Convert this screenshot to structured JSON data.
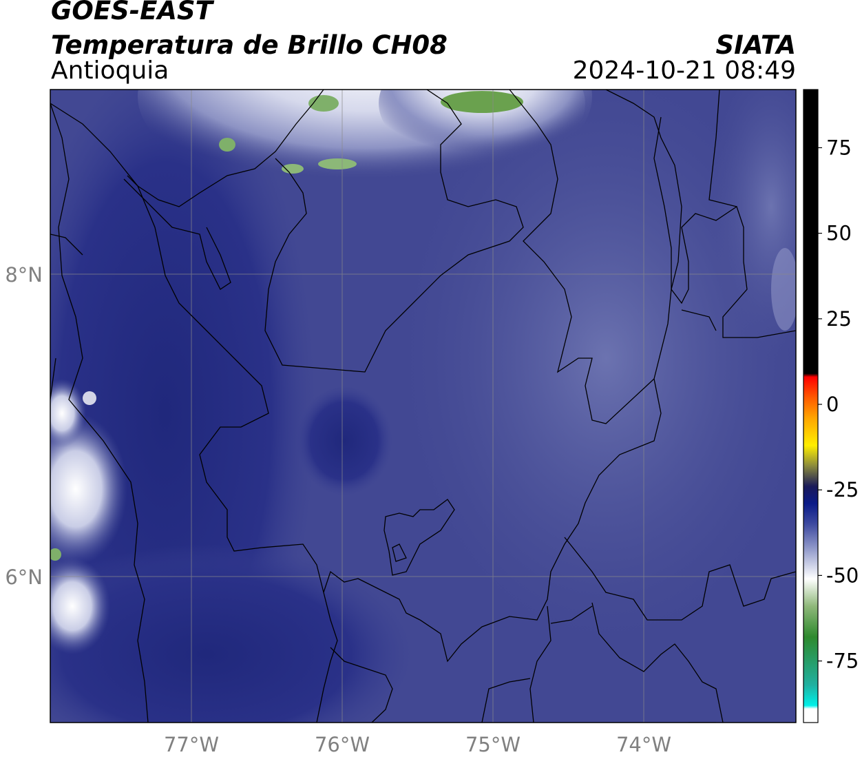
{
  "header": {
    "satellite": "GOES-EAST",
    "product": "Temperatura de Brillo CH08",
    "region": "Antioquia",
    "organization": "SIATA",
    "datetime": "2024-10-21 08:49"
  },
  "map": {
    "lon_ticks": [
      "77°W",
      "76°W",
      "75°W",
      "74°W"
    ],
    "lat_ticks": [
      "8°N",
      "6°N"
    ],
    "lon_range": [
      -77.94,
      -73.0
    ],
    "lat_range": [
      5.05,
      9.25
    ],
    "colors": {
      "background": "#41478f",
      "deep_blue": "#252a80",
      "cloud_white": "#e8eaf4",
      "green": "#5f9a3c",
      "border": "#000000",
      "grid": "#8a8a8a"
    }
  },
  "colorbar": {
    "ticks": [
      "75",
      "50",
      "25",
      "0",
      "-25",
      "-50",
      "-75"
    ],
    "range": [
      -93,
      92
    ],
    "stops": [
      {
        "value": 92,
        "color": "#000000"
      },
      {
        "value": 9,
        "color": "#000000"
      },
      {
        "value": 8,
        "color": "#ff0000"
      },
      {
        "value": 2,
        "color": "#ff5a00"
      },
      {
        "value": -4,
        "color": "#ffa500"
      },
      {
        "value": -12,
        "color": "#ffee00"
      },
      {
        "value": -18,
        "color": "#8a8a3c"
      },
      {
        "value": -24,
        "color": "#1a1a5a"
      },
      {
        "value": -29,
        "color": "#0b1b88"
      },
      {
        "value": -35,
        "color": "#3e4aa0"
      },
      {
        "value": -43,
        "color": "#9ba3cf"
      },
      {
        "value": -51,
        "color": "#ffffff"
      },
      {
        "value": -59,
        "color": "#8fb87a"
      },
      {
        "value": -68,
        "color": "#2e8a2e"
      },
      {
        "value": -82,
        "color": "#20b0a0"
      },
      {
        "value": -88,
        "color": "#00f0e8"
      },
      {
        "value": -89,
        "color": "#ffffff"
      },
      {
        "value": -93,
        "color": "#ffffff"
      }
    ]
  }
}
